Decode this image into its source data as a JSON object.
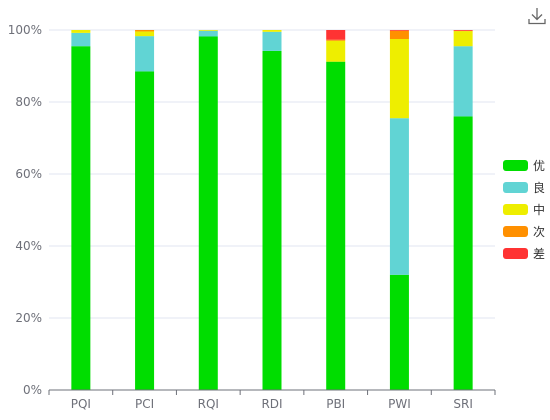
{
  "toolbar": {
    "download_icon": "download-icon"
  },
  "chart_data": {
    "type": "bar",
    "stacked": true,
    "normalized_percent": true,
    "categories": [
      "PQI",
      "PCI",
      "RQI",
      "RDI",
      "PBI",
      "PWI",
      "SRI"
    ],
    "series": [
      {
        "name": "优",
        "color": "#00dd00",
        "values": [
          95.5,
          88.5,
          98.2,
          94.2,
          91.2,
          32.0,
          76.0
        ]
      },
      {
        "name": "良",
        "color": "#61d4d4",
        "values": [
          3.7,
          9.8,
          1.6,
          5.3,
          0.0,
          43.5,
          19.5
        ]
      },
      {
        "name": "中",
        "color": "#eeee00",
        "values": [
          0.8,
          1.3,
          0.2,
          0.5,
          5.8,
          22.0,
          4.2
        ]
      },
      {
        "name": "次",
        "color": "#ff9000",
        "values": [
          0.0,
          0.4,
          0.0,
          0.0,
          0.3,
          2.3,
          0.1
        ]
      },
      {
        "name": "差",
        "color": "#ff3333",
        "values": [
          0.0,
          0.0,
          0.0,
          0.0,
          2.7,
          0.2,
          0.2
        ]
      }
    ],
    "ylim": [
      0,
      100
    ],
    "y_ticks": [
      "0%",
      "20%",
      "40%",
      "60%",
      "80%",
      "100%"
    ],
    "y_tick_values": [
      0,
      20,
      40,
      60,
      80,
      100
    ],
    "grid": true,
    "legend_position": "right",
    "title": "",
    "xlabel": "",
    "ylabel": ""
  }
}
